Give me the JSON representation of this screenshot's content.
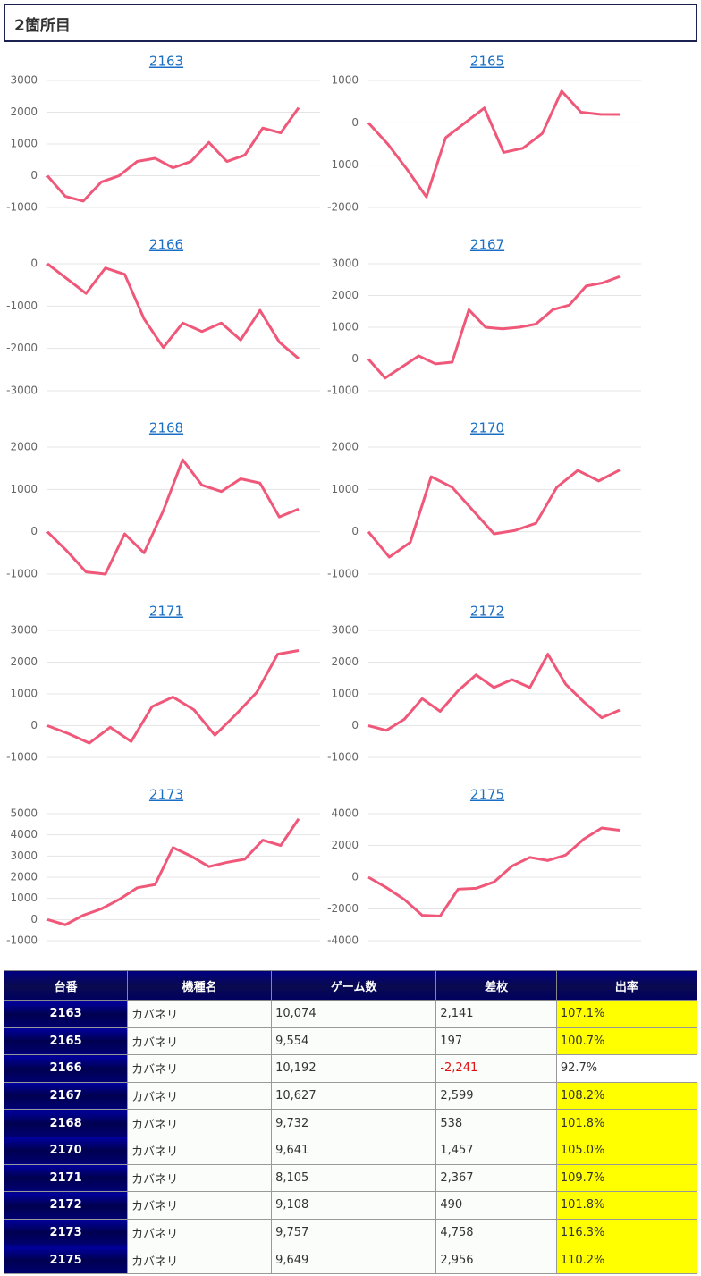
{
  "header": {
    "title": "2箇所目"
  },
  "chart_data": [
    {
      "type": "line",
      "title": "2163",
      "color": "#f0587a",
      "grid": true,
      "ylim": [
        -1000,
        3000
      ],
      "yticks": [
        3000,
        2000,
        1000,
        0,
        -1000
      ],
      "values": [
        0,
        -650,
        -800,
        -200,
        0,
        450,
        550,
        250,
        450,
        1050,
        450,
        650,
        1500,
        1350,
        2141
      ]
    },
    {
      "type": "line",
      "title": "2165",
      "color": "#f0587a",
      "grid": true,
      "ylim": [
        -2000,
        1000
      ],
      "yticks": [
        1000,
        0,
        -1000,
        -2000
      ],
      "values": [
        0,
        -500,
        -1100,
        -1750,
        -350,
        0,
        350,
        -700,
        -600,
        -250,
        750,
        250,
        200,
        197
      ]
    },
    {
      "type": "line",
      "title": "2166",
      "color": "#f0587a",
      "grid": true,
      "ylim": [
        -3000,
        0
      ],
      "yticks": [
        0,
        -1000,
        -2000,
        -3000
      ],
      "values": [
        0,
        -350,
        -700,
        -100,
        -250,
        -1300,
        -1980,
        -1400,
        -1600,
        -1400,
        -1800,
        -1100,
        -1850,
        -2241
      ]
    },
    {
      "type": "line",
      "title": "2167",
      "color": "#f0587a",
      "grid": true,
      "ylim": [
        -1000,
        3000
      ],
      "yticks": [
        3000,
        2000,
        1000,
        0,
        -1000
      ],
      "values": [
        0,
        -600,
        -250,
        100,
        -150,
        -100,
        1550,
        1000,
        950,
        1000,
        1100,
        1550,
        1700,
        2300,
        2400,
        2599
      ]
    },
    {
      "type": "line",
      "title": "2168",
      "color": "#f0587a",
      "grid": true,
      "ylim": [
        -1000,
        2000
      ],
      "yticks": [
        2000,
        1000,
        0,
        -1000
      ],
      "values": [
        0,
        -450,
        -950,
        -1000,
        -50,
        -500,
        500,
        1700,
        1100,
        950,
        1250,
        1150,
        350,
        538
      ]
    },
    {
      "type": "line",
      "title": "2170",
      "color": "#f0587a",
      "grid": true,
      "ylim": [
        -1000,
        2000
      ],
      "yticks": [
        2000,
        1000,
        0,
        -1000
      ],
      "values": [
        0,
        -600,
        -250,
        1300,
        1050,
        500,
        -50,
        30,
        200,
        1050,
        1450,
        1200,
        1457
      ]
    },
    {
      "type": "line",
      "title": "2171",
      "color": "#f0587a",
      "grid": true,
      "ylim": [
        -1000,
        3000
      ],
      "yticks": [
        3000,
        2000,
        1000,
        0,
        -1000
      ],
      "values": [
        0,
        -250,
        -550,
        -50,
        -500,
        600,
        900,
        500,
        -300,
        350,
        1050,
        2250,
        2367
      ]
    },
    {
      "type": "line",
      "title": "2172",
      "color": "#f0587a",
      "grid": true,
      "ylim": [
        -1000,
        3000
      ],
      "yticks": [
        3000,
        2000,
        1000,
        0,
        -1000
      ],
      "values": [
        0,
        -150,
        200,
        850,
        450,
        1100,
        1600,
        1200,
        1450,
        1200,
        2250,
        1300,
        750,
        250,
        490
      ]
    },
    {
      "type": "line",
      "title": "2173",
      "color": "#f0587a",
      "grid": true,
      "ylim": [
        -1000,
        5000
      ],
      "yticks": [
        5000,
        4000,
        3000,
        2000,
        1000,
        0,
        -1000
      ],
      "values": [
        0,
        -250,
        200,
        500,
        950,
        1500,
        1650,
        3400,
        3000,
        2500,
        2700,
        2850,
        3750,
        3500,
        4758
      ]
    },
    {
      "type": "line",
      "title": "2175",
      "color": "#f0587a",
      "grid": true,
      "ylim": [
        -4000,
        4000
      ],
      "yticks": [
        4000,
        2000,
        0,
        -2000,
        -4000
      ],
      "values": [
        0,
        -650,
        -1400,
        -2400,
        -2450,
        -750,
        -700,
        -300,
        700,
        1250,
        1050,
        1400,
        2400,
        3100,
        2956
      ]
    }
  ],
  "table": {
    "columns": [
      "台番",
      "機種名",
      "ゲーム数",
      "差枚",
      "出率"
    ],
    "rows": [
      [
        "2163",
        "カバネリ",
        "10,074",
        "2,141",
        "107.1%"
      ],
      [
        "2165",
        "カバネリ",
        "9,554",
        "197",
        "100.7%"
      ],
      [
        "2166",
        "カバネリ",
        "10,192",
        "-2,241",
        "92.7%"
      ],
      [
        "2167",
        "カバネリ",
        "10,627",
        "2,599",
        "108.2%"
      ],
      [
        "2168",
        "カバネリ",
        "9,732",
        "538",
        "101.8%"
      ],
      [
        "2170",
        "カバネリ",
        "9,641",
        "1,457",
        "105.0%"
      ],
      [
        "2171",
        "カバネリ",
        "8,105",
        "2,367",
        "109.7%"
      ],
      [
        "2172",
        "カバネリ",
        "9,108",
        "490",
        "101.8%"
      ],
      [
        "2173",
        "カバネリ",
        "9,757",
        "4,758",
        "116.3%"
      ],
      [
        "2175",
        "カバネリ",
        "9,649",
        "2,956",
        "110.2%"
      ]
    ],
    "diff_colors": [
      "#333333",
      "#333333",
      "#e01010",
      "#333333",
      "#333333",
      "#333333",
      "#333333",
      "#333333",
      "#333333",
      "#333333"
    ],
    "rate_colors": [
      "#ffff00",
      "#ffff00",
      "#ffffff",
      "#ffff00",
      "#ffff00",
      "#ffff00",
      "#ffff00",
      "#ffff00",
      "#ffff00",
      "#ffff00"
    ]
  }
}
